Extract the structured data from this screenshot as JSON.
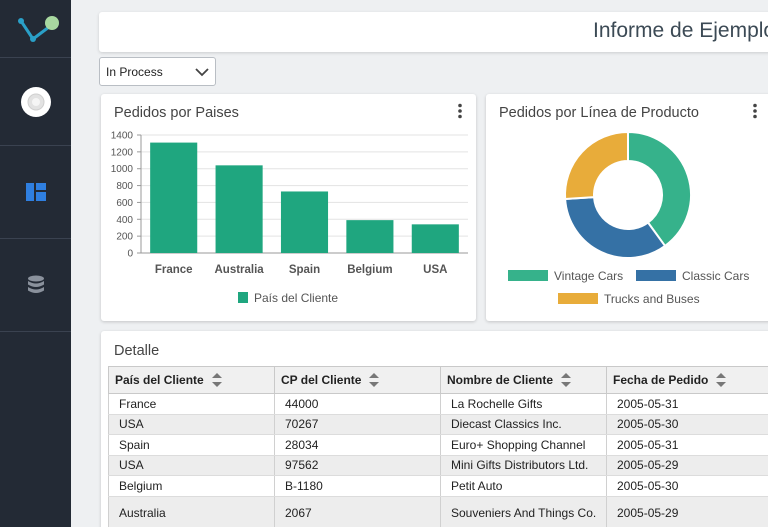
{
  "sidebar": {
    "items": [
      {
        "icon": "logo-icon"
      },
      {
        "icon": "user-avatar-icon"
      },
      {
        "icon": "dashboard-icon",
        "active": true,
        "color": "#2f7fe0"
      },
      {
        "icon": "database-icon"
      }
    ]
  },
  "header": {
    "title": "Informe de Ejemplo"
  },
  "filter": {
    "selected": "In Process"
  },
  "bar_card": {
    "title": "Pedidos por Paises"
  },
  "pie_card": {
    "title": "Pedidos por Línea de Producto"
  },
  "table_card": {
    "title": "Detalle",
    "columns": [
      "País del Cliente",
      "CP del Cliente",
      "Nombre de Cliente",
      "Fecha de Pedido"
    ],
    "rows": [
      [
        "France",
        "44000",
        "La Rochelle Gifts",
        "2005-05-31"
      ],
      [
        "USA",
        "70267",
        "Diecast Classics Inc.",
        "2005-05-30"
      ],
      [
        "Spain",
        "28034",
        "Euro+ Shopping Channel",
        "2005-05-31"
      ],
      [
        "USA",
        "97562",
        "Mini Gifts Distributors Ltd.",
        "2005-05-29"
      ],
      [
        "Belgium",
        "B-1180",
        "Petit Auto",
        "2005-05-30"
      ],
      [
        "Australia",
        "2067",
        "Souveniers And Things Co.",
        "2005-05-29"
      ]
    ]
  },
  "chart_data": [
    {
      "type": "bar",
      "title": "Pedidos por Paises",
      "categories": [
        "France",
        "Australia",
        "Spain",
        "Belgium",
        "USA"
      ],
      "series": [
        {
          "name": "País del Cliente",
          "values": [
            1310,
            1040,
            730,
            390,
            340
          ],
          "color": "#1fa67f"
        }
      ],
      "yticks": [
        0,
        200,
        400,
        600,
        800,
        1000,
        1200,
        1400
      ],
      "ylim": [
        0,
        1400
      ],
      "grid": true,
      "legend": "bottom"
    },
    {
      "type": "pie",
      "title": "Pedidos por Línea de Producto",
      "donut": true,
      "labels": [
        "Vintage Cars",
        "Classic Cars",
        "Trucks and Buses"
      ],
      "values": [
        40,
        34,
        26
      ],
      "colors": [
        "#36b28b",
        "#3571a5",
        "#e8ac3a"
      ],
      "legend": "bottom"
    }
  ]
}
